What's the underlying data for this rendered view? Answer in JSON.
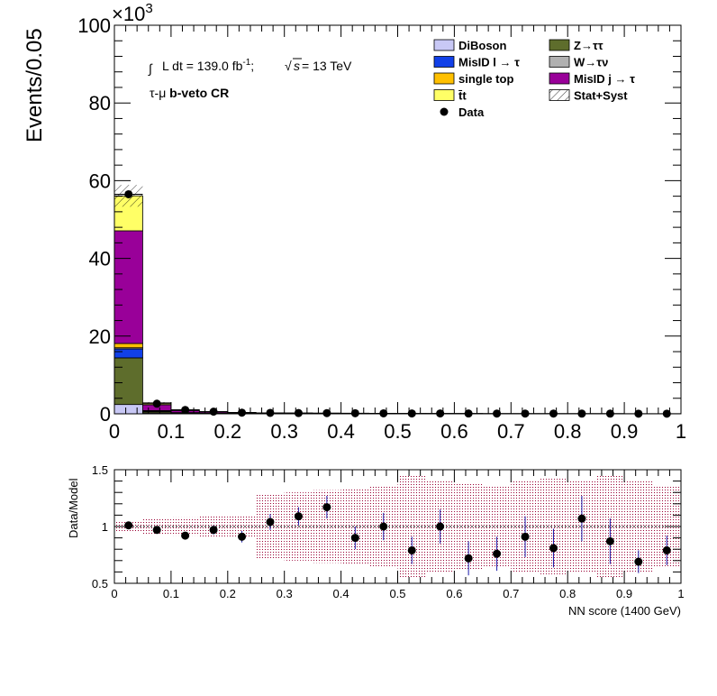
{
  "chart_data": [
    {
      "type": "bar",
      "stacked": true,
      "y_multiplier_label": "×10",
      "y_multiplier_exp": "3",
      "ylabel": "Events/0.05",
      "xlim": [
        0,
        1
      ],
      "ylim": [
        0,
        100
      ],
      "x_ticks": [
        "0",
        "0.1",
        "0.2",
        "0.3",
        "0.4",
        "0.5",
        "0.6",
        "0.7",
        "0.8",
        "0.9",
        "1"
      ],
      "y_ticks": [
        "0",
        "20",
        "40",
        "60",
        "80",
        "100"
      ],
      "bin_edges": [
        0,
        0.05,
        0.1,
        0.15,
        0.2,
        0.25,
        0.3,
        0.35,
        0.4,
        0.45,
        0.5,
        0.55,
        0.6,
        0.65,
        0.7,
        0.75,
        0.8,
        0.85,
        0.9,
        0.95,
        1.0
      ],
      "series": [
        {
          "name": "DiBoson",
          "color": "#c8c8f5",
          "values": [
            2.4,
            0.25,
            0.1,
            0.06,
            0.04,
            0.03,
            0.02,
            0.02,
            0.015,
            0.01,
            0.01,
            0.01,
            0.008,
            0.006,
            0.005,
            0.005,
            0.004,
            0.004,
            0.003,
            0.003
          ]
        },
        {
          "name": "Z→ττ",
          "color": "#5e6d2c",
          "values": [
            12.0,
            0.3,
            0.1,
            0.05,
            0.03,
            0.02,
            0.02,
            0.015,
            0.01,
            0.01,
            0.008,
            0.006,
            0.005,
            0.004,
            0.004,
            0.003,
            0.003,
            0.002,
            0.002,
            0.002
          ]
        },
        {
          "name": "MisID l → τ",
          "color": "#1140e8",
          "values": [
            2.3,
            0.15,
            0.06,
            0.04,
            0.03,
            0.02,
            0.015,
            0.012,
            0.01,
            0.008,
            0.006,
            0.005,
            0.004,
            0.003,
            0.003,
            0.002,
            0.002,
            0.002,
            0.002,
            0.001
          ]
        },
        {
          "name": "W→τν",
          "color": "#b0b0b0",
          "values": [
            0.3,
            0.03,
            0.01,
            0.005,
            0.004,
            0.003,
            0.002,
            0.002,
            0.001,
            0.001,
            0.001,
            0.001,
            0.001,
            0.001,
            0.001,
            0.001,
            0.001,
            0.001,
            0.001,
            0.001
          ]
        },
        {
          "name": "single top",
          "color": "#ffc000",
          "values": [
            1.1,
            0.1,
            0.04,
            0.02,
            0.015,
            0.01,
            0.008,
            0.006,
            0.005,
            0.004,
            0.003,
            0.003,
            0.002,
            0.002,
            0.002,
            0.001,
            0.001,
            0.001,
            0.001,
            0.001
          ]
        },
        {
          "name": "MisID j → τ",
          "color": "#990099",
          "values": [
            29.0,
            1.5,
            0.55,
            0.3,
            0.17,
            0.12,
            0.09,
            0.07,
            0.06,
            0.05,
            0.04,
            0.035,
            0.03,
            0.025,
            0.022,
            0.02,
            0.018,
            0.016,
            0.014,
            0.012
          ]
        },
        {
          "name": "t̄t",
          "color": "#ffff66",
          "values": [
            9.0,
            0.5,
            0.2,
            0.1,
            0.07,
            0.05,
            0.04,
            0.03,
            0.025,
            0.02,
            0.017,
            0.015,
            0.013,
            0.011,
            0.01,
            0.009,
            0.008,
            0.007,
            0.006,
            0.005
          ]
        }
      ],
      "uncertainty": {
        "name": "Stat+Syst",
        "rel_err": [
          0.05,
          0.07,
          0.08,
          0.09,
          0.1,
          0.11,
          0.12,
          0.13,
          0.14,
          0.15,
          0.16,
          0.17,
          0.18,
          0.19,
          0.2,
          0.2,
          0.21,
          0.22,
          0.23,
          0.24
        ]
      },
      "data": {
        "name": "Data",
        "values": [
          56.5,
          2.6,
          1.0,
          0.55,
          0.3,
          0.24,
          0.2,
          0.18,
          0.15,
          0.12,
          0.1,
          0.09,
          0.08,
          0.07,
          0.06,
          0.06,
          0.05,
          0.05,
          0.04,
          0.04
        ]
      },
      "annotations": {
        "lumi_prefix": "L dt = 139.0 fb",
        "lumi_exp": "-1",
        "lumi_sep": ";",
        "sqrt_s": "s",
        "energy": " = 13 TeV",
        "region_prefix": "τ-μ ",
        "region_name": "b-veto CR"
      },
      "legend_position": "top-right"
    },
    {
      "type": "scatter",
      "ylabel": "Data/Model",
      "xlabel": "NN score (1400 GeV)",
      "xlim": [
        0,
        1
      ],
      "ylim": [
        0.5,
        1.5
      ],
      "x_ticks": [
        "0",
        "0.1",
        "0.2",
        "0.3",
        "0.4",
        "0.5",
        "0.6",
        "0.7",
        "0.8",
        "0.9",
        "1"
      ],
      "y_ticks": [
        "0.5",
        "1",
        "1.5"
      ],
      "x": [
        0.025,
        0.075,
        0.125,
        0.175,
        0.225,
        0.275,
        0.325,
        0.375,
        0.425,
        0.475,
        0.525,
        0.575,
        0.625,
        0.675,
        0.725,
        0.775,
        0.825,
        0.875,
        0.925,
        0.975
      ],
      "y": [
        1.01,
        0.97,
        0.92,
        0.97,
        0.91,
        1.04,
        1.09,
        1.17,
        0.9,
        1.0,
        0.79,
        1.0,
        0.72,
        0.76,
        0.91,
        0.81,
        1.07,
        0.87,
        0.69,
        0.79
      ],
      "y_err": [
        0.01,
        0.02,
        0.03,
        0.04,
        0.05,
        0.07,
        0.08,
        0.1,
        0.1,
        0.12,
        0.12,
        0.15,
        0.15,
        0.15,
        0.18,
        0.17,
        0.2,
        0.2,
        0.1,
        0.13
      ],
      "band_rel_err": [
        0.05,
        0.07,
        0.08,
        0.09,
        0.1,
        0.28,
        0.3,
        0.32,
        0.34,
        0.36,
        0.45,
        0.4,
        0.38,
        0.35,
        0.4,
        0.42,
        0.4,
        0.45,
        0.4,
        0.35
      ]
    }
  ]
}
